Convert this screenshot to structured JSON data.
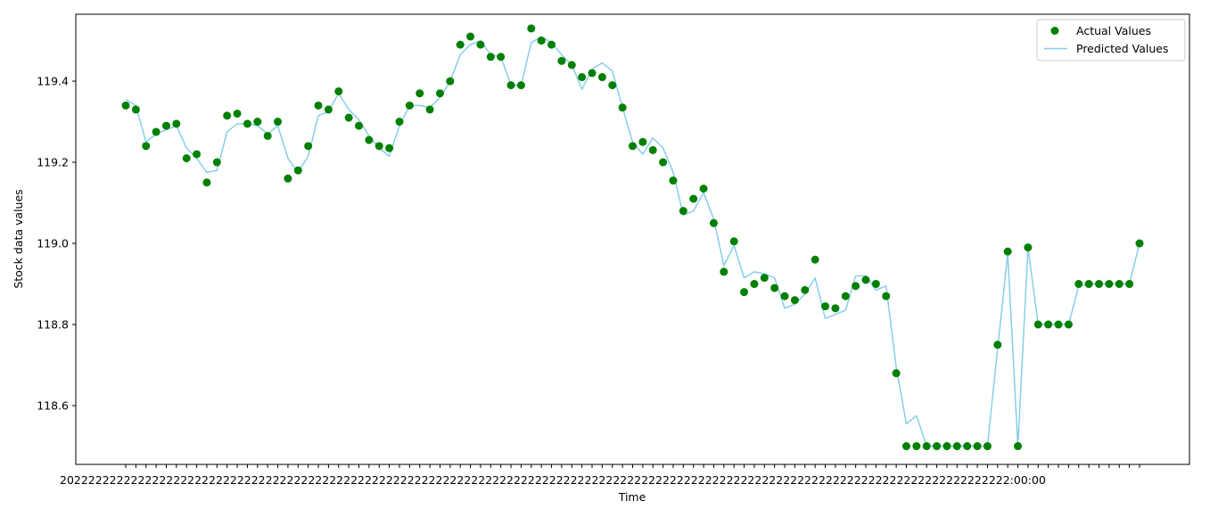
{
  "chart_data": {
    "type": "scatter",
    "title": "",
    "xlabel": "Time",
    "ylabel": "Stock data values",
    "ylim": [
      118.455,
      119.565
    ],
    "yticks": [
      118.6,
      118.8,
      119.0,
      119.2,
      119.4
    ],
    "ytick_labels": [
      "118.6",
      "118.8",
      "119.0",
      "119.2",
      "119.4"
    ],
    "x_ticklabels_note": "x tick labels are overlapping timestamps rendered illegibly",
    "x_tick_label_visible_text": "20222222222222222222222222222222222222222222222222222222222222222222222222222222222222222222222222222222222222222222222222222222222222:00:00",
    "grid": false,
    "legend_position": "upper right",
    "series": [
      {
        "name": "Actual Values",
        "kind": "scatter",
        "color": "#008000",
        "values": [
          119.34,
          119.33,
          119.24,
          119.275,
          119.29,
          119.295,
          119.21,
          119.22,
          119.15,
          119.2,
          119.315,
          119.32,
          119.295,
          119.3,
          119.265,
          119.3,
          119.16,
          119.18,
          119.24,
          119.34,
          119.33,
          119.375,
          119.31,
          119.29,
          119.255,
          119.24,
          119.235,
          119.3,
          119.34,
          119.37,
          119.33,
          119.37,
          119.4,
          119.49,
          119.51,
          119.49,
          119.46,
          119.46,
          119.39,
          119.39,
          119.53,
          119.5,
          119.49,
          119.45,
          119.44,
          119.41,
          119.42,
          119.41,
          119.39,
          119.335,
          119.24,
          119.25,
          119.23,
          119.2,
          119.155,
          119.08,
          119.11,
          119.135,
          119.05,
          118.93,
          119.005,
          118.88,
          118.9,
          118.915,
          118.89,
          118.87,
          118.86,
          118.885,
          118.96,
          118.845,
          118.84,
          118.87,
          118.895,
          118.91,
          118.9,
          118.87,
          118.68,
          118.5,
          118.5,
          118.5,
          118.5,
          118.5,
          118.5,
          118.5,
          118.5,
          118.5,
          118.75,
          118.98,
          118.5,
          118.99,
          118.8,
          118.8,
          118.8,
          118.8,
          118.9,
          118.9,
          118.9,
          118.9,
          118.9,
          118.9,
          119.0
        ]
      },
      {
        "name": "Predicted Values",
        "kind": "line",
        "color": "#87ceeb",
        "values": [
          119.355,
          119.34,
          119.25,
          119.27,
          119.28,
          119.29,
          119.235,
          119.21,
          119.175,
          119.18,
          119.275,
          119.295,
          119.295,
          119.29,
          119.27,
          119.29,
          119.21,
          119.175,
          119.215,
          119.315,
          119.325,
          119.37,
          119.33,
          119.305,
          119.265,
          119.235,
          119.215,
          119.29,
          119.34,
          119.34,
          119.335,
          119.36,
          119.4,
          119.465,
          119.49,
          119.5,
          119.465,
          119.46,
          119.39,
          119.39,
          119.495,
          119.51,
          119.495,
          119.465,
          119.44,
          119.38,
          119.43,
          119.445,
          119.425,
          119.335,
          119.25,
          119.22,
          119.26,
          119.235,
          119.175,
          119.07,
          119.08,
          119.125,
          119.06,
          118.945,
          118.995,
          118.915,
          118.93,
          118.925,
          118.915,
          118.84,
          118.85,
          118.875,
          118.915,
          118.815,
          118.825,
          118.835,
          118.92,
          118.92,
          118.885,
          118.895,
          118.695,
          118.555,
          118.575,
          118.5,
          118.5,
          118.5,
          118.5,
          118.5,
          118.5,
          118.5,
          118.74,
          118.975,
          118.5,
          118.99,
          118.8,
          118.8,
          118.8,
          118.8,
          118.895,
          118.9,
          118.9,
          118.9,
          118.9,
          118.9,
          119.0
        ]
      }
    ]
  }
}
